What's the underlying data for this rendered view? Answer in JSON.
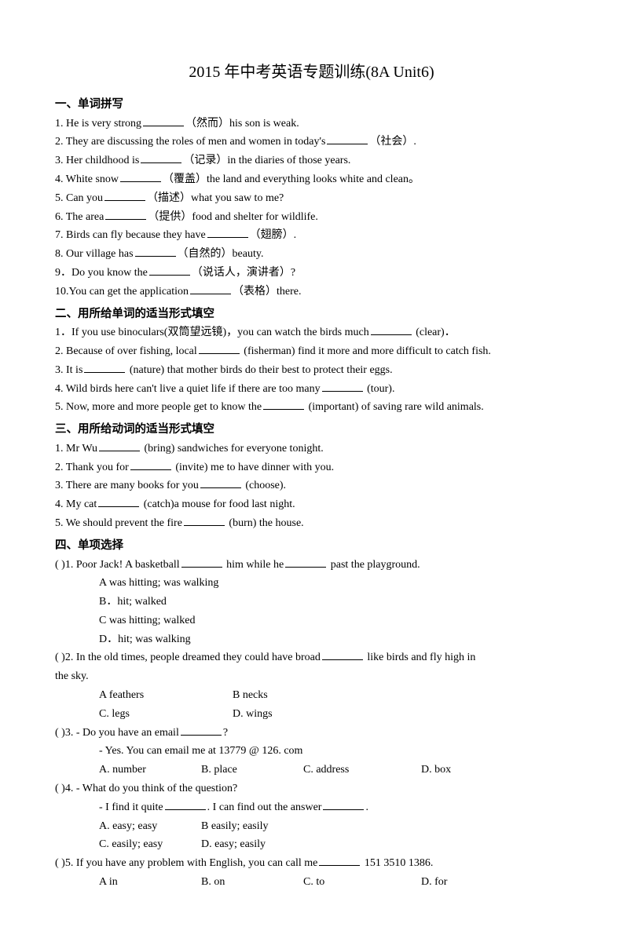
{
  "title": "2015 年中考英语专题训练(8A Unit6)",
  "s1": {
    "header": "一、单词拼写",
    "q1a": "1. He is very strong",
    "q1b": "（然而）his son is weak.",
    "q2a": "2. They are discussing the roles of men and women in today's",
    "q2b": "（社会）.",
    "q3a": "3. Her childhood is",
    "q3b": "（记录）in the diaries of those years.",
    "q4a": "4. White snow",
    "q4b": "（覆盖）the land and everything looks white and clean。",
    "q5a": "5. Can you",
    "q5b": "（描述）what you saw to me?",
    "q6a": "6. The area",
    "q6b": "（提供）food and shelter for wildlife.",
    "q7a": "7. Birds can fly because they have",
    "q7b": "（翅膀）.",
    "q8a": "8. Our village has",
    "q8b": "（自然的）beauty.",
    "q9a": "9．Do you know the",
    "q9b": "（说话人，演讲者）?",
    "q10a": "10.You can get the application",
    "q10b": "（表格）there."
  },
  "s2": {
    "header": "二、用所给单词的适当形式填空",
    "q1a": "1．If you use binoculars(双筒望远镜)，you can watch the birds much",
    "q1b": " (clear)．",
    "q2a": "2. Because of over fishing, local",
    "q2b": " (fisherman) find it more and more difficult to catch fish.",
    "q3a": "3. It is",
    "q3b": " (nature) that mother birds do their best to protect their eggs.",
    "q4a": "4. Wild birds here can't live a quiet life if there are too many",
    "q4b": " (tour).",
    "q5a": "5. Now, more and more people get to know the",
    "q5b": " (important) of saving rare wild animals."
  },
  "s3": {
    "header": "三、用所给动词的适当形式填空",
    "q1a": "1. Mr Wu",
    "q1b": " (bring) sandwiches for everyone tonight.",
    "q2a": "2. Thank you for",
    "q2b": " (invite) me to have dinner with you.",
    "q3a": "3. There are many books for you",
    "q3b": " (choose).",
    "q4a": "4. My cat",
    "q4b": " (catch)a mouse for food last night.",
    "q5a": "5. We should prevent the fire",
    "q5b": " (burn) the house."
  },
  "s4": {
    "header": "四、单项选择",
    "q1": {
      "stem_a": "(       )1. Poor Jack! A basketball",
      "stem_b": " him while he",
      "stem_c": " past the playground.",
      "a": "A was hitting; was walking",
      "b": "B．hit; walked",
      "c": "C was hitting; walked",
      "d": "D．hit; was walking"
    },
    "q2": {
      "stem_a": "(       )2. In the old times, people dreamed they could have broad",
      "stem_b": " like birds and fly high in",
      "stem_c": "the sky.",
      "a": "A feathers",
      "b": "B necks",
      "c": "C. legs",
      "d": "D. wings"
    },
    "q3": {
      "stem_a": "(       )3. - Do you have an email",
      "stem_b": "?",
      "sub": "- Yes. You can email me at 13779 @ 126. com",
      "a": "A. number",
      "b": "B. place",
      "c": "C. address",
      "d": "D. box"
    },
    "q4": {
      "stem": "(       )4. - What do you think of the question?",
      "sub_a": "- I find it quite",
      "sub_b": ". I can find out the answer",
      "sub_c": ".",
      "a": "A. easy; easy",
      "b": "B easily; easily",
      "c": "C. easily; easy",
      "d": "D. easy; easily"
    },
    "q5": {
      "stem_a": "(       )5. If you have any problem with English, you can call me",
      "stem_b": " 151 3510 1386.",
      "a": "A in",
      "b": "B. on",
      "c": "C. to",
      "d": "D. for"
    }
  }
}
